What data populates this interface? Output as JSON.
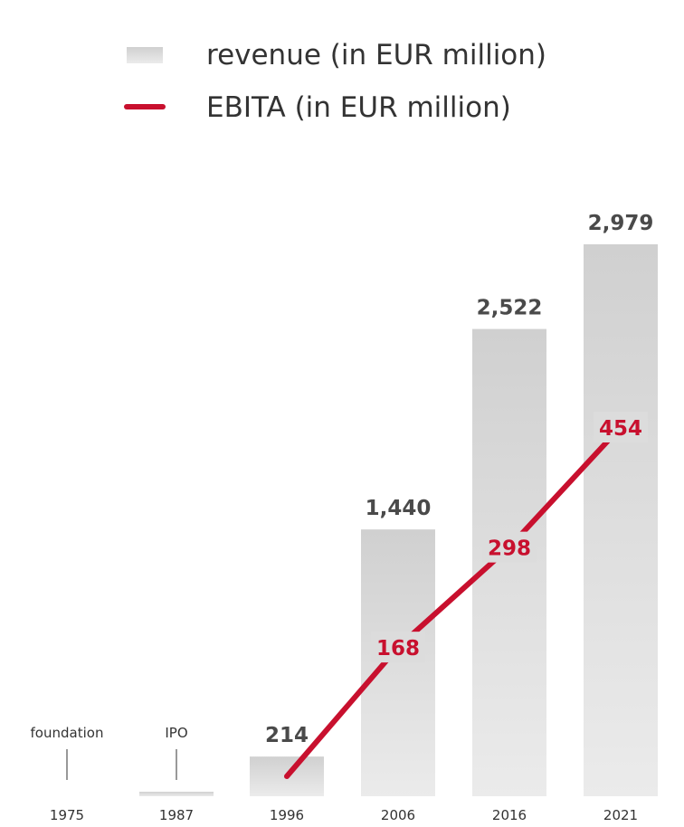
{
  "chart_data": {
    "type": "bar",
    "categories": [
      "1975",
      "1987",
      "1996",
      "2006",
      "2016",
      "2021"
    ],
    "series": [
      {
        "name": "revenue (in EUR million)",
        "kind": "bar",
        "color": "#d9d9d9",
        "values": [
          0,
          5,
          214,
          1440,
          2522,
          2979
        ],
        "labels": [
          "",
          "",
          "214",
          "1,440",
          "2,522",
          "2,979"
        ]
      },
      {
        "name": "EBITA (in EUR million)",
        "kind": "line",
        "color": "#c8102e",
        "values": [
          null,
          null,
          0,
          168,
          298,
          454
        ],
        "labels": [
          "",
          "",
          "",
          "168",
          "298",
          "454"
        ]
      }
    ],
    "annotations": [
      {
        "category": "1975",
        "text": "foundation"
      },
      {
        "category": "1987",
        "text": "IPO"
      }
    ],
    "title": "",
    "xlabel": "",
    "ylabel": "",
    "grid": false,
    "legend": "top"
  }
}
